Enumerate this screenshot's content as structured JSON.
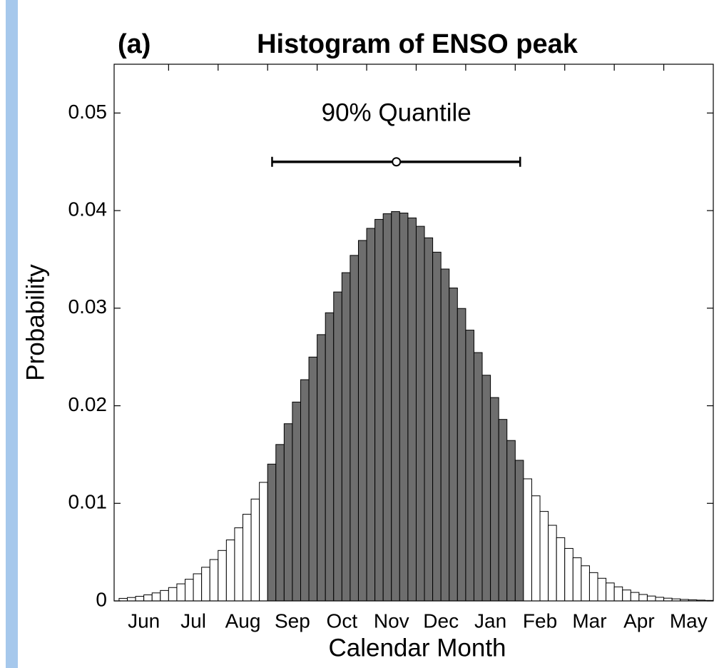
{
  "chart_data": {
    "type": "histogram",
    "panel": "(a)",
    "title": "Histogram of ENSO peak",
    "ylabel": "Probability",
    "xlabel": "Calendar Month",
    "categories": [
      "Jun",
      "Jul",
      "Aug",
      "Sep",
      "Oct",
      "Nov",
      "Dec",
      "Jan",
      "Feb",
      "Mar",
      "Apr",
      "May"
    ],
    "bins": [
      0,
      0.1667,
      0.3333,
      0.5,
      0.6667,
      0.8333,
      1,
      1.1667,
      1.3333,
      1.5,
      1.6667,
      1.8333,
      2,
      2.1667,
      2.3333,
      2.5,
      2.6667,
      2.8333,
      3,
      3.1667,
      3.3333,
      3.5,
      3.6667,
      3.8333,
      4,
      4.1667,
      4.3333,
      4.5,
      4.6667,
      4.8333,
      5,
      5.1667,
      5.3333,
      5.5,
      5.6667,
      5.8333,
      6,
      6.1667,
      6.3333,
      6.5,
      6.6667,
      6.8333,
      7,
      7.1667,
      7.3333,
      7.5,
      7.6667,
      7.8333,
      8,
      8.1667,
      8.3333,
      8.5,
      8.6667,
      8.8333,
      9,
      9.1667,
      9.3333,
      9.5,
      9.6667,
      9.8333,
      10,
      10.1667,
      10.3333,
      10.5,
      10.6667,
      10.8333,
      11,
      11.1667,
      11.3333,
      11.5,
      11.6667,
      11.8333,
      12
    ],
    "values": [
      0.00026,
      0.00035,
      0.00047,
      0.00062,
      0.00082,
      0.00107,
      0.00137,
      0.00175,
      0.00222,
      0.00278,
      0.00345,
      0.00424,
      0.00517,
      0.00625,
      0.00749,
      0.00888,
      0.01044,
      0.01215,
      0.01402,
      0.01603,
      0.01816,
      0.02038,
      0.02267,
      0.02499,
      0.02729,
      0.02953,
      0.03166,
      0.03364,
      0.03541,
      0.03694,
      0.03818,
      0.0391,
      0.03968,
      0.0399,
      0.03975,
      0.03925,
      0.03839,
      0.03721,
      0.03574,
      0.03401,
      0.03207,
      0.02997,
      0.02775,
      0.02545,
      0.02313,
      0.02084,
      0.0186,
      0.01644,
      0.01441,
      0.01251,
      0.01077,
      0.00917,
      0.00775,
      0.00648,
      0.00538,
      0.00442,
      0.0036,
      0.0029,
      0.00232,
      0.00184,
      0.00144,
      0.00112,
      0.00087,
      0.00066,
      0.0005,
      0.00037,
      0.00028,
      0.00021,
      0.00015,
      0.00011,
      8e-05,
      5e-05
    ],
    "color": "#ffffff",
    "highlight": {
      "from": 18,
      "to": 48,
      "color": "#6e6e6e"
    },
    "quantile": {
      "label": "90% Quantile",
      "low": 3.09,
      "center": 5.6,
      "high": 8.1,
      "y": 0.045
    },
    "xlim": [
      -0.1,
      12
    ],
    "xticks": [
      1,
      2,
      3,
      4,
      5,
      6,
      7,
      8,
      9,
      10,
      11
    ],
    "ylim": [
      0,
      0.055
    ],
    "yticks": [
      0,
      0.01,
      0.02,
      0.03,
      0.04,
      0.05
    ]
  }
}
